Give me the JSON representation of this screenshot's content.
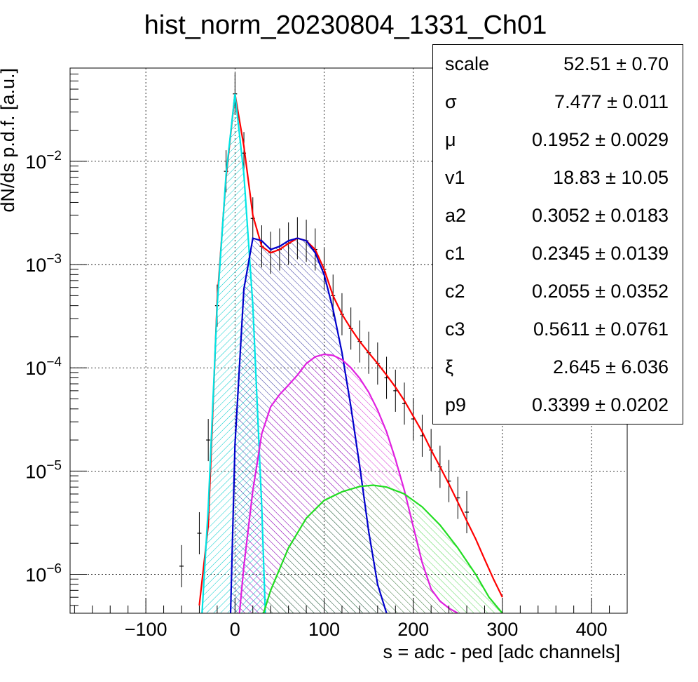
{
  "chart_data": {
    "type": "histogram",
    "title": "hist_norm_20230804_1331_Ch01",
    "xlabel": "s = adc - ped [adc channels]",
    "ylabel": "dN/ds p.d.f. [a.u.]",
    "xlim": [
      -185,
      440
    ],
    "ylim": [
      4.2e-07,
      0.08
    ],
    "yscale": "log",
    "grid": true,
    "x_ticks": [
      -100,
      0,
      100,
      200,
      300,
      400
    ],
    "x_tick_labels": [
      "−100",
      "0",
      "100",
      "200",
      "300",
      "400"
    ],
    "y_ticks": [
      1e-06,
      1e-05,
      0.0001,
      0.001,
      0.01
    ],
    "y_tick_labels": [
      {
        "base": "10",
        "exp": "−6"
      },
      {
        "base": "10",
        "exp": "−5"
      },
      {
        "base": "10",
        "exp": "−4"
      },
      {
        "base": "10",
        "exp": "−3"
      },
      {
        "base": "10",
        "exp": "−2"
      }
    ],
    "data_series": {
      "color": "#000000",
      "x": [
        -60,
        -40,
        -30,
        -20,
        -10,
        0,
        10,
        20,
        30,
        40,
        50,
        60,
        70,
        80,
        90,
        100,
        110,
        120,
        130,
        140,
        150,
        160,
        170,
        180,
        190,
        200,
        210,
        220,
        230,
        240,
        250,
        260
      ],
      "y": [
        1.2e-06,
        2.5e-06,
        2e-05,
        0.0004,
        0.008,
        0.045,
        0.012,
        0.0028,
        0.0015,
        0.0013,
        0.0014,
        0.0016,
        0.0018,
        0.0017,
        0.0014,
        0.0009,
        0.0005,
        0.00033,
        0.00024,
        0.00018,
        0.00014,
        0.00011,
        8e-05,
        6e-05,
        4.5e-05,
        3.2e-05,
        2.2e-05,
        1.6e-05,
        1.1e-05,
        8e-06,
        5.5e-06,
        4e-06
      ]
    },
    "components": [
      {
        "color": "#ff0000",
        "fill": false,
        "x": [
          -40,
          -30,
          -20,
          -10,
          0,
          10,
          20,
          30,
          40,
          50,
          60,
          70,
          80,
          90,
          100,
          110,
          120,
          130,
          140,
          150,
          160,
          170,
          180,
          190,
          200,
          210,
          220,
          230,
          240,
          250,
          260,
          270,
          280,
          290,
          300
        ],
        "y": [
          5e-07,
          3e-06,
          0.00045,
          0.007,
          0.045,
          0.014,
          0.003,
          0.0015,
          0.0013,
          0.0014,
          0.0016,
          0.0018,
          0.0017,
          0.0014,
          0.0009,
          0.0005,
          0.00033,
          0.00024,
          0.00018,
          0.00014,
          0.00011,
          8.5e-05,
          6.5e-05,
          4.8e-05,
          3.4e-05,
          2.4e-05,
          1.6e-05,
          1.1e-05,
          7.5e-06,
          5e-06,
          3.3e-06,
          2.2e-06,
          1.4e-06,
          9e-07,
          6e-07
        ]
      },
      {
        "color": "#00e5e5",
        "fill": true,
        "hatch": "cyan",
        "x": [
          -37,
          -30,
          -20,
          -10,
          0,
          10,
          20,
          30,
          34
        ],
        "y": [
          4.2e-07,
          4.5e-06,
          0.0004,
          0.0075,
          0.045,
          0.0075,
          0.0004,
          4.5e-06,
          4.2e-07
        ]
      },
      {
        "color": "#0000cc",
        "fill": true,
        "hatch": "blue",
        "x": [
          -5,
          0,
          10,
          20,
          30,
          40,
          50,
          60,
          70,
          80,
          90,
          100,
          110,
          120,
          130,
          140,
          150,
          160,
          170
        ],
        "y": [
          4.2e-07,
          1.8e-05,
          0.00058,
          0.0018,
          0.0017,
          0.0014,
          0.0015,
          0.0017,
          0.0018,
          0.0017,
          0.0013,
          0.0008,
          0.00037,
          0.00014,
          4.2e-05,
          1.1e-05,
          2.6e-06,
          8e-07,
          4.2e-07
        ]
      },
      {
        "color": "#e020e0",
        "fill": true,
        "hatch": "magenta",
        "x": [
          5,
          10,
          20,
          30,
          40,
          50,
          60,
          70,
          80,
          90,
          100,
          110,
          120,
          130,
          140,
          150,
          160,
          170,
          180,
          190,
          200,
          210,
          220,
          230,
          240,
          250
        ],
        "y": [
          4.2e-07,
          1.2e-06,
          6.5e-06,
          2.3e-05,
          4.2e-05,
          5.5e-05,
          6.8e-05,
          8.5e-05,
          0.00011,
          0.000128,
          0.000135,
          0.000132,
          0.00012,
          0.0001,
          7.9e-05,
          5.8e-05,
          3.9e-05,
          2.4e-05,
          1.3e-05,
          6.5e-06,
          2.9e-06,
          1.3e-06,
          7.2e-07,
          5.5e-07,
          4.7e-07,
          4.2e-07
        ]
      },
      {
        "color": "#22dd22",
        "fill": true,
        "hatch": "green",
        "x": [
          32,
          40,
          60,
          80,
          100,
          120,
          140,
          155,
          170,
          190,
          210,
          230,
          250,
          270,
          285,
          300
        ],
        "y": [
          4.2e-07,
          7e-07,
          1.8e-06,
          3.5e-06,
          5.2e-06,
          6.3e-06,
          7.1e-06,
          7.3e-06,
          7e-06,
          6e-06,
          4.5e-06,
          3e-06,
          1.8e-06,
          1e-06,
          6e-07,
          4.2e-07
        ]
      }
    ]
  },
  "stats": [
    {
      "name": "scale",
      "value": "52.51 ± 0.70"
    },
    {
      "name": "σ",
      "value": "7.477 ± 0.011"
    },
    {
      "name": "μ",
      "value": "0.1952 ± 0.0029"
    },
    {
      "name": "v1",
      "value": "18.83 ± 10.05"
    },
    {
      "name": "a2",
      "value": "0.3052 ± 0.0183"
    },
    {
      "name": "c1",
      "value": "0.2345 ± 0.0139"
    },
    {
      "name": "c2",
      "value": "0.2055 ± 0.0352"
    },
    {
      "name": "c3",
      "value": "0.5611 ± 0.0761"
    },
    {
      "name": "ξ",
      "value": "2.645 ± 6.036"
    },
    {
      "name": "p9",
      "value": "0.3399 ± 0.0202"
    }
  ]
}
